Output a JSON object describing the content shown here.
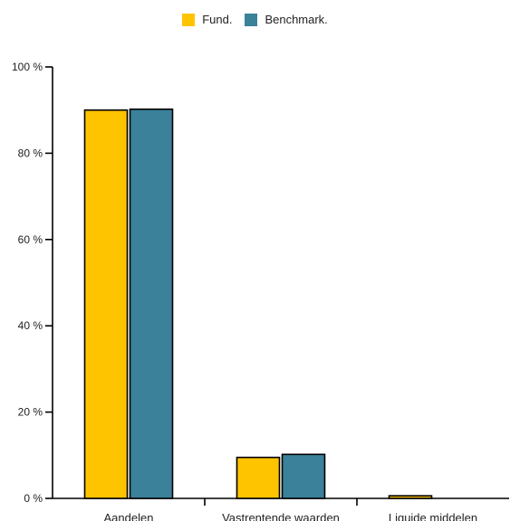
{
  "colors": {
    "fund": "#FFC400",
    "benchmark": "#3A8199",
    "axis": "#000000"
  },
  "chart_data": {
    "type": "bar",
    "title": "",
    "xlabel": "",
    "ylabel": "",
    "categories": [
      "Aandelen",
      "Vastrentende waarden",
      "Liquide middelen"
    ],
    "series": [
      {
        "name": "Fund.",
        "values": [
          90,
          9.5,
          0.6
        ]
      },
      {
        "name": "Benchmark.",
        "values": [
          90.2,
          10.2,
          0
        ]
      }
    ],
    "ylim": [
      0,
      100
    ],
    "yticks": [
      0,
      20,
      40,
      60,
      80,
      100
    ],
    "ytick_labels": [
      "0 %",
      "20 %",
      "40 %",
      "60 %",
      "80 %",
      "100 %"
    ],
    "grid": false,
    "legend_position": "top-center"
  }
}
